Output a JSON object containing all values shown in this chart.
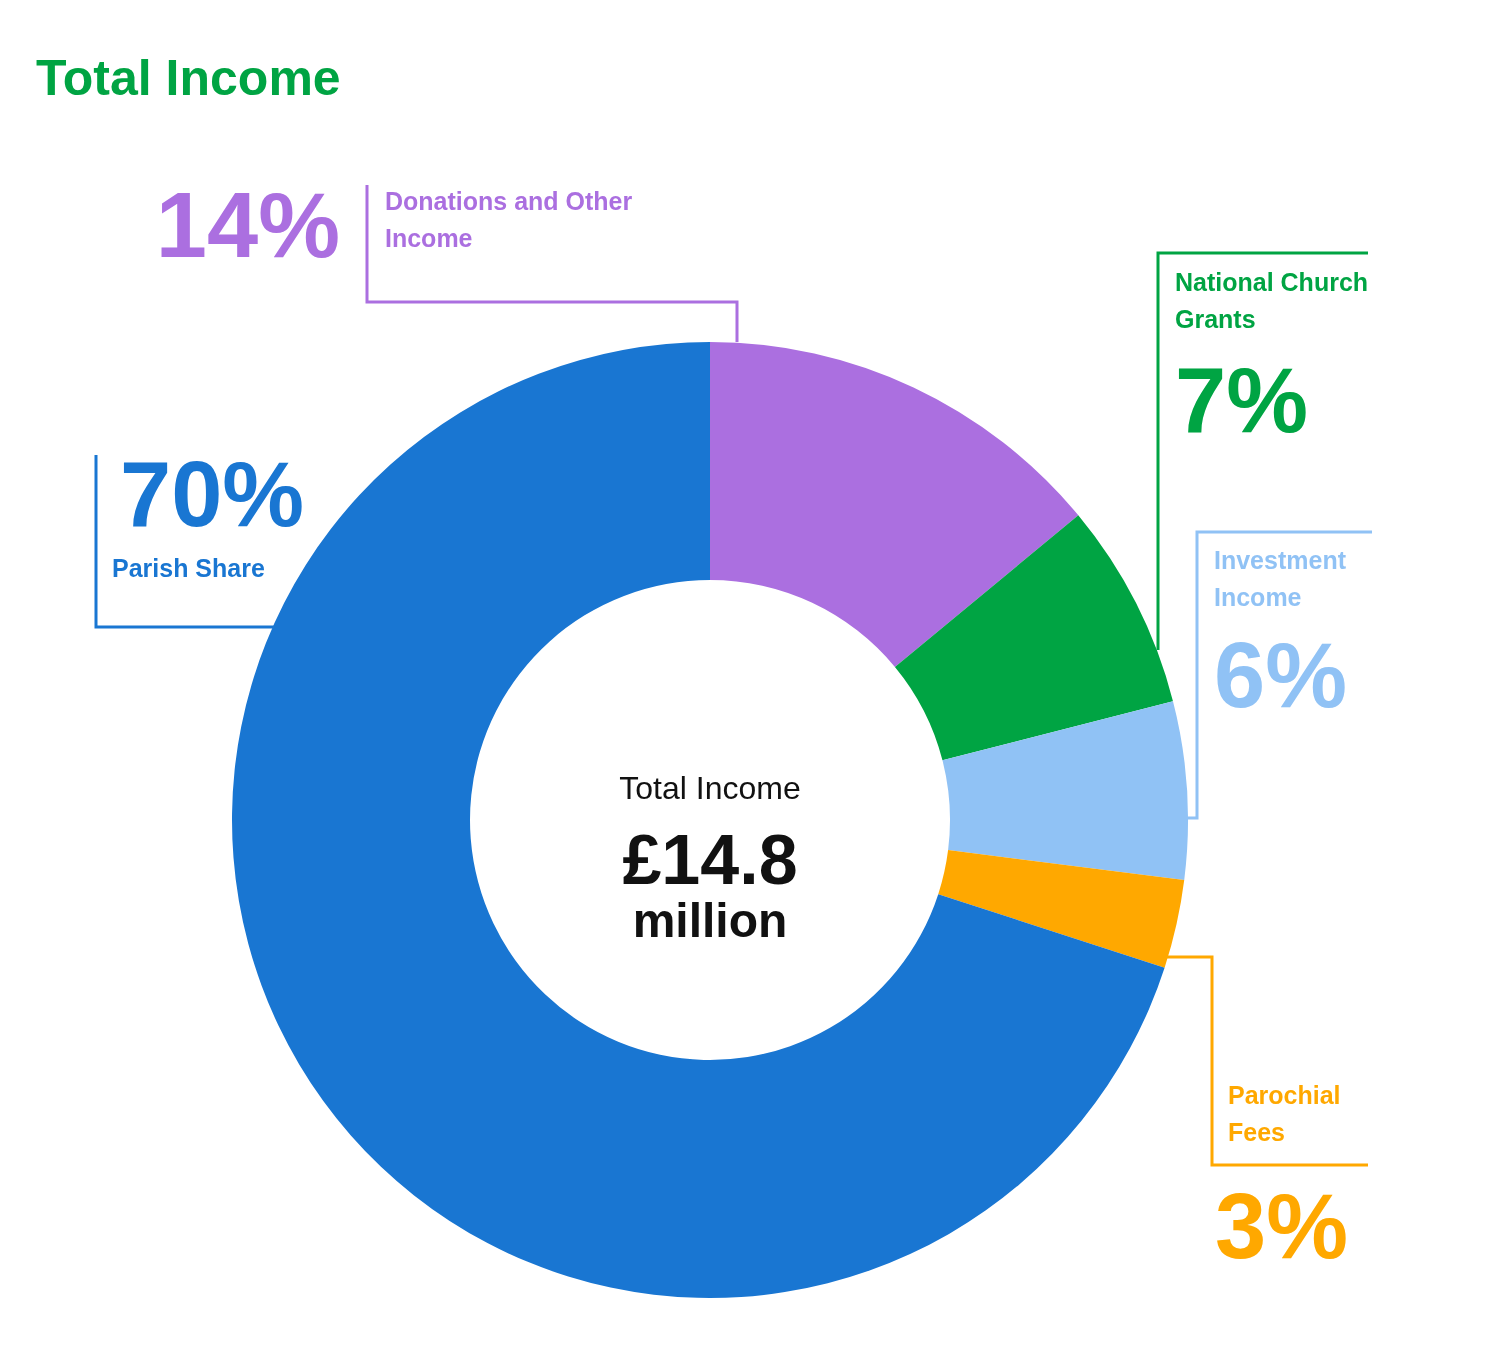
{
  "chart_data": {
    "type": "donut",
    "title": "Total Income",
    "categories": [
      "Donations and Other Income",
      "National Church Grants",
      "Investment Income",
      "Parochial Fees",
      "Parish Share"
    ],
    "values": [
      14,
      7,
      6,
      3,
      70
    ],
    "colors": [
      "#ab6fe0",
      "#00a443",
      "#90c2f5",
      "#ffa800",
      "#1976d2"
    ],
    "value_labels": [
      "14%",
      "7%",
      "6%",
      "3%",
      "70%"
    ],
    "annotations": [
      "Total Income",
      "£14.8",
      "million"
    ]
  }
}
